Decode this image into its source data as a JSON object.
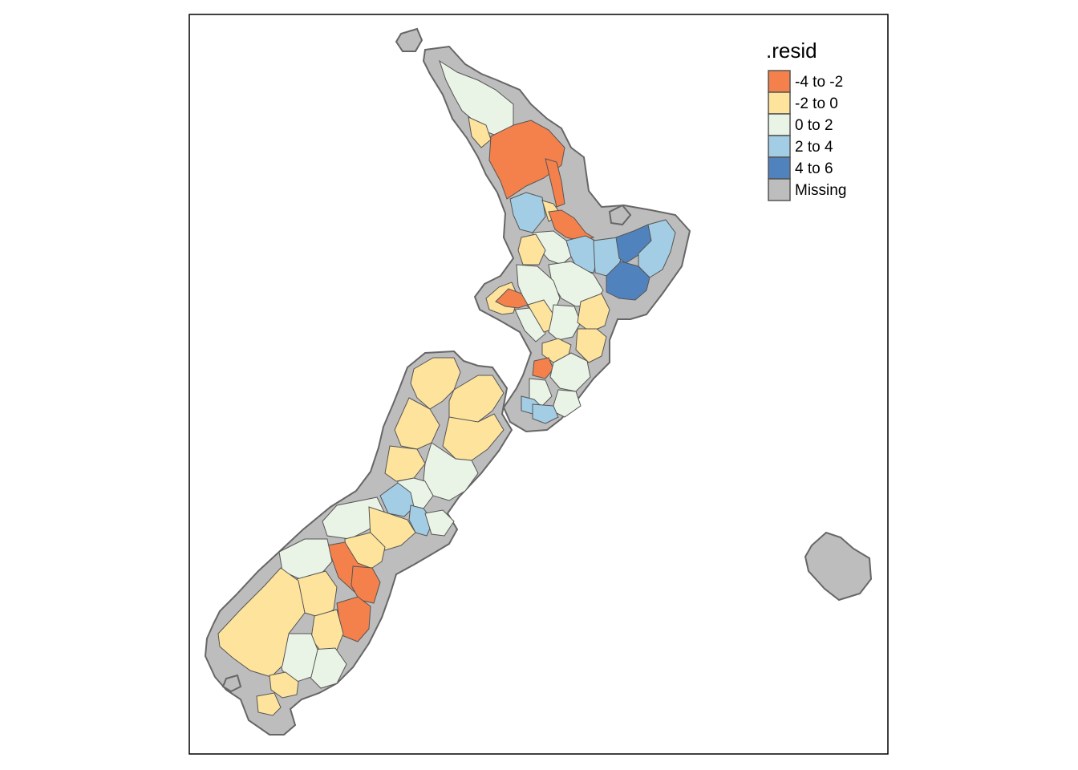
{
  "legend": {
    "title": ".resid",
    "items": [
      {
        "label": "-4 to -2",
        "color": "#F4804C"
      },
      {
        "label": "-2 to 0",
        "color": "#FEE39D"
      },
      {
        "label": "0 to 2",
        "color": "#EAF4E6"
      },
      {
        "label": "2 to 4",
        "color": "#A3CDE4"
      },
      {
        "label": "4 to 6",
        "color": "#5083BE"
      },
      {
        "label": "Missing",
        "color": "#BDBDBD"
      }
    ]
  },
  "colors": {
    "buffer": "#BDBDBD",
    "buffer_stroke": "#666666",
    "region_stroke": "#555555",
    "frame": "#000000"
  }
}
